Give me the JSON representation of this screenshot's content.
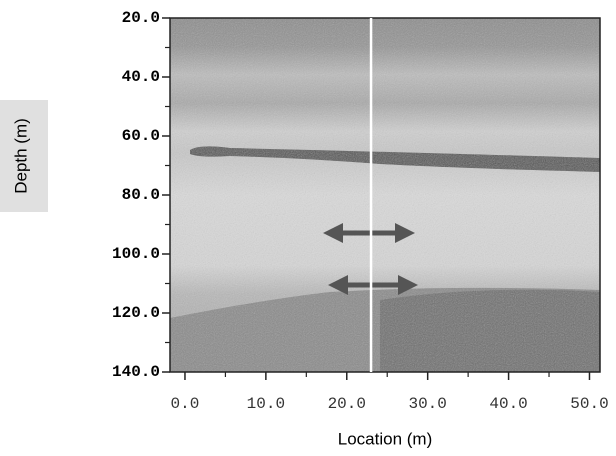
{
  "chart_data": {
    "type": "image",
    "xlabel": "Location (m)",
    "ylabel": "Depth (m)",
    "xlim": [
      -1.85,
      51.3
    ],
    "ylim": [
      20,
      140
    ],
    "xticks": [
      {
        "value": 0,
        "label": "0.0"
      },
      {
        "value": 10,
        "label": "10.0"
      },
      {
        "value": 20,
        "label": "20.0"
      },
      {
        "value": 30,
        "label": "30.0"
      },
      {
        "value": 40,
        "label": "40.0"
      },
      {
        "value": 50,
        "label": "50.0"
      }
    ],
    "xminorticks": [
      5,
      15,
      25,
      35,
      45
    ],
    "yticks": [
      {
        "value": 20,
        "label": "20.0"
      },
      {
        "value": 40,
        "label": "40.0"
      },
      {
        "value": 60,
        "label": "60.0"
      },
      {
        "value": 80,
        "label": "80.0"
      },
      {
        "value": 100,
        "label": "100.0"
      },
      {
        "value": 120,
        "label": "120.0"
      },
      {
        "value": 140,
        "label": "140.0"
      }
    ],
    "yminorticks": [
      30,
      50,
      70,
      90,
      110,
      130
    ],
    "vertical_line_x": 23
  }
}
